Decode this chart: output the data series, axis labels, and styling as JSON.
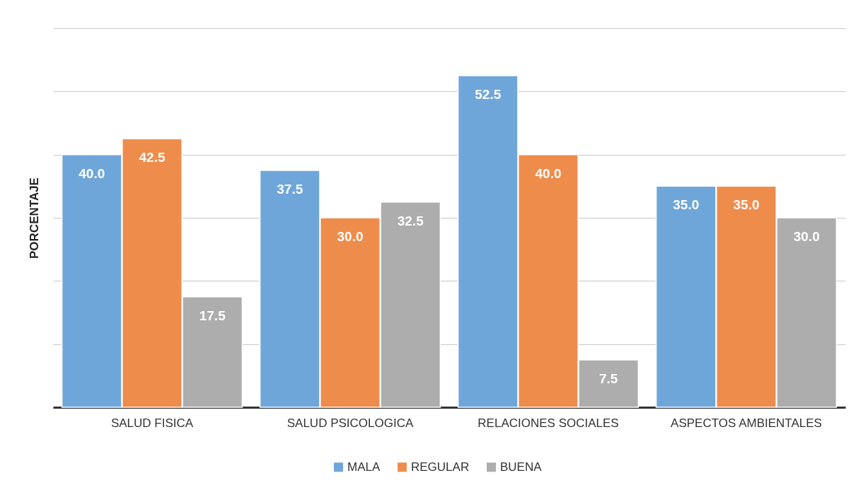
{
  "chart_data": {
    "type": "bar",
    "ylabel": "PORCENTAJE",
    "categories": [
      "SALUD FISICA",
      "SALUD PSICOLOGICA",
      "RELACIONES SOCIALES",
      "ASPECTOS AMBIENTALES"
    ],
    "series": [
      {
        "name": "MALA",
        "color": "#6fa6da",
        "values": [
          40.0,
          37.5,
          52.5,
          35.0
        ],
        "value_labels": [
          "40.0",
          "37.5",
          "52.5",
          "35.0"
        ]
      },
      {
        "name": "REGULAR",
        "color": "#ee8c4c",
        "values": [
          42.5,
          30.0,
          40.0,
          35.0
        ],
        "value_labels": [
          "42.5",
          "30.0",
          "40.0",
          "35.0"
        ]
      },
      {
        "name": "BUENA",
        "color": "#adadad",
        "values": [
          17.5,
          32.5,
          7.5,
          30.0
        ],
        "value_labels": [
          "17.5",
          "32.5",
          "7.5",
          "30.0"
        ]
      }
    ],
    "ylim": [
      0,
      60
    ],
    "yticks": [
      {
        "value": 0,
        "label": null
      },
      {
        "value": 10,
        "label": null
      },
      {
        "value": 20,
        "label": null
      },
      {
        "value": 30,
        "label": null
      },
      {
        "value": 40,
        "label": null
      },
      {
        "value": 50,
        "label": null
      },
      {
        "value": 60,
        "label": null
      }
    ],
    "grid": "y",
    "tick_labels": "x",
    "legend": "bottom"
  }
}
